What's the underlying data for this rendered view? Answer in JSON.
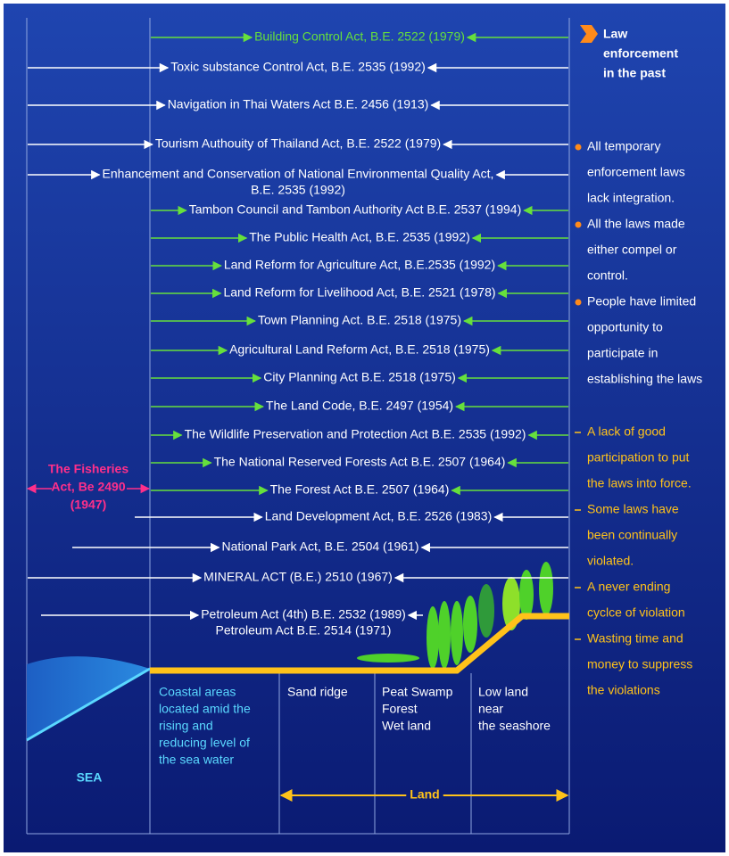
{
  "acts": [
    {
      "lines": [
        "Building Control Act, B.E. 2522 (1979)"
      ],
      "color": "#66e03c"
    },
    {
      "lines": [
        "Toxic substance Control Act, B.E. 2535 (1992)"
      ],
      "color": "#ffffff"
    },
    {
      "lines": [
        "Navigation in Thai Waters Act B.E. 2456 (1913)"
      ],
      "color": "#ffffff"
    },
    {
      "lines": [
        "Tourism Authouity of Thailand Act, B.E. 2522 (1979)"
      ],
      "color": "#ffffff"
    },
    {
      "lines": [
        "Enhancement and Conservation of National Environmental Quality Act,",
        "B.E. 2535 (1992)"
      ],
      "color": "#ffffff"
    },
    {
      "lines": [
        "Tambon Council and Tambon Authority Act B.E. 2537 (1994)"
      ],
      "color": "#66e03c"
    },
    {
      "lines": [
        "The Public Health Act, B.E. 2535 (1992)"
      ],
      "color": "#66e03c"
    },
    {
      "lines": [
        "Land Reform for Agriculture Act, B.E.2535 (1992)"
      ],
      "color": "#66e03c"
    },
    {
      "lines": [
        "Land Reform for Livelihood Act, B.E. 2521 (1978)"
      ],
      "color": "#66e03c"
    },
    {
      "lines": [
        "Town Planning Act. B.E. 2518 (1975)"
      ],
      "color": "#66e03c"
    },
    {
      "lines": [
        "Agricultural Land Reform Act, B.E. 2518 (1975)"
      ],
      "color": "#66e03c"
    },
    {
      "lines": [
        "City Planning Act B.E. 2518 (1975)"
      ],
      "color": "#66e03c"
    },
    {
      "lines": [
        "The Land Code, B.E. 2497 (1954)"
      ],
      "color": "#66e03c"
    },
    {
      "lines": [
        "The Wildlife Preservation and Protection Act B.E. 2535 (1992)"
      ],
      "color": "#66e03c"
    },
    {
      "lines": [
        "The National Reserved Forests Act B.E. 2507 (1964)"
      ],
      "color": "#66e03c"
    },
    {
      "lines": [
        "The Forest Act B.E. 2507 (1964)"
      ],
      "color": "#66e03c"
    },
    {
      "lines": [
        "Land Development Act, B.E. 2526 (1983)"
      ],
      "color": "#ffffff"
    },
    {
      "lines": [
        "National Park Act, B.E. 2504 (1961)"
      ],
      "color": "#ffffff"
    },
    {
      "lines": [
        "MINERAL ACT (B.E.) 2510 (1967)"
      ],
      "color": "#ffffff"
    },
    {
      "lines": [
        "Petroleum Act (4th) B.E. 2532 (1989)",
        "Petroleum Act B.E. 2514 (1971)"
      ],
      "color": "#ffffff"
    }
  ],
  "fisheries": {
    "lines": [
      "The Fisheries",
      "Act, Be 2490",
      "(1947)"
    ],
    "color": "#ff2f8a"
  },
  "panel": {
    "title": [
      "Law",
      "enforcement",
      "in the past"
    ],
    "bullets": [
      [
        "All temporary",
        "enforcement laws",
        "lack integration."
      ],
      [
        "All the laws made",
        "either compel or",
        "control."
      ],
      [
        "People have limited",
        "opportunity to",
        "participate in",
        "establishing the laws"
      ]
    ],
    "problems": [
      [
        "A lack of good",
        "participation to put",
        "the laws into force."
      ],
      [
        "Some laws have",
        "been continually",
        "violated."
      ],
      [
        "A never ending",
        "cyclce of violation"
      ],
      [
        "Wasting time and",
        "money to suppress",
        "the violations"
      ]
    ]
  },
  "zones": {
    "coastal": [
      "Coastal areas",
      "located amid the",
      "rising and",
      "reducing level of",
      "the sea water"
    ],
    "sand": [
      "Sand ridge"
    ],
    "peat": [
      "Peat Swamp",
      "Forest",
      "Wet land"
    ],
    "low": [
      "Low land",
      "near",
      "the seashore"
    ],
    "sea": "SEA",
    "land": "Land"
  }
}
